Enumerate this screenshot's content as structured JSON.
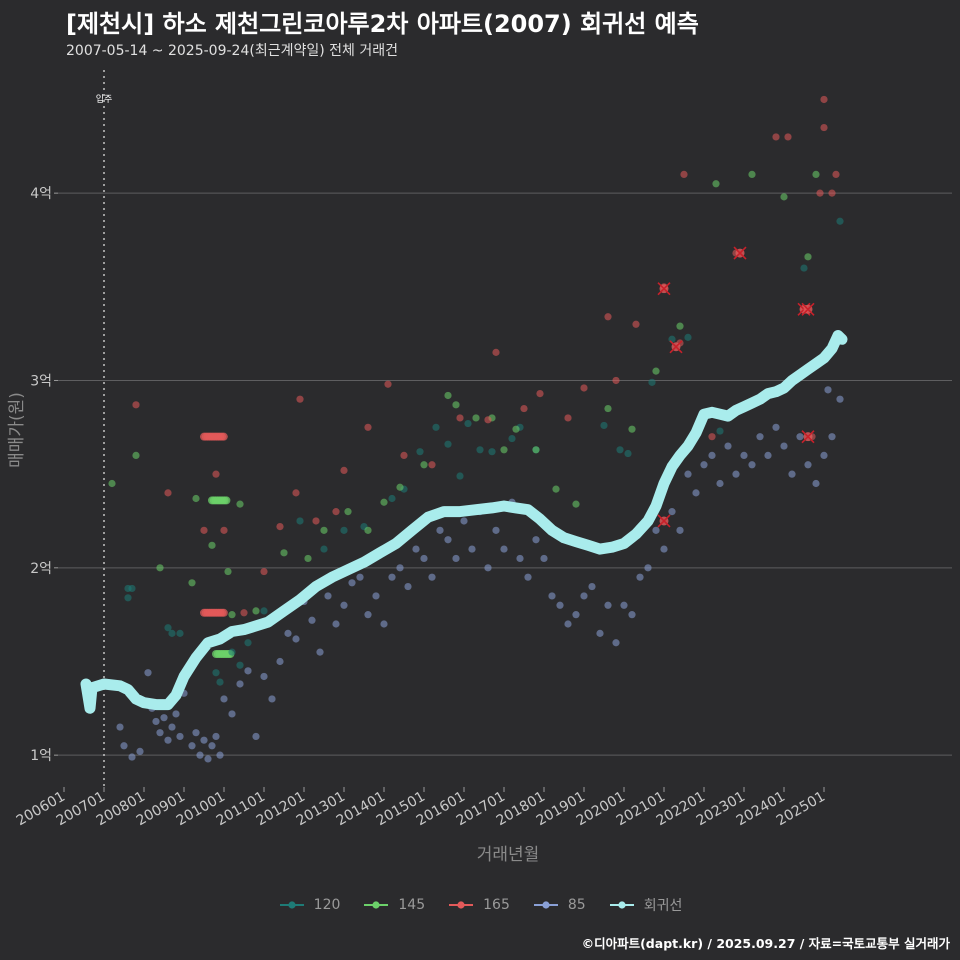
{
  "title": "[제천시] 하소 제천그린코아루2차 아파트(2007) 회귀선 예측",
  "subtitle": "2007-05-14 ~ 2025-09-24(최근계약일) 전체 거래건",
  "source": "©디아파트(dapt.kr) / 2025.09.27 / 자료=국토교통부 실거래가",
  "colors": {
    "background": "#2b2b2d",
    "grid": "#5e5e60",
    "s120": "#1e7b76",
    "s145": "#6cd16a",
    "s165": "#e35a5a",
    "s85": "#8aa0d6",
    "regression": "#a9ecec",
    "cancel": "#c8202a"
  },
  "chart_data": {
    "type": "scatter",
    "title": "[제천시] 하소 제천그린코아루2차 아파트(2007) 회귀선 예측",
    "xlabel": "거래년월",
    "ylabel": "매매가(원)",
    "xlim": [
      2005.85,
      2028.2
    ],
    "ylim": [
      0.83,
      4.7
    ],
    "yunit": "억",
    "y_ticks": [
      {
        "value": 1,
        "label": "1억"
      },
      {
        "value": 2,
        "label": "2억"
      },
      {
        "value": 3,
        "label": "3억"
      },
      {
        "value": 4,
        "label": "4억"
      }
    ],
    "x_ticks": [
      {
        "value": 2006.0,
        "label": "200601"
      },
      {
        "value": 2007.0,
        "label": "200701"
      },
      {
        "value": 2008.0,
        "label": "200801"
      },
      {
        "value": 2009.0,
        "label": "200901"
      },
      {
        "value": 2010.0,
        "label": "201001"
      },
      {
        "value": 2011.0,
        "label": "201101"
      },
      {
        "value": 2012.0,
        "label": "201201"
      },
      {
        "value": 2013.0,
        "label": "201301"
      },
      {
        "value": 2014.0,
        "label": "201401"
      },
      {
        "value": 2015.0,
        "label": "201501"
      },
      {
        "value": 2016.0,
        "label": "201601"
      },
      {
        "value": 2017.0,
        "label": "201701"
      },
      {
        "value": 2018.0,
        "label": "201801"
      },
      {
        "value": 2019.0,
        "label": "201901"
      },
      {
        "value": 2020.0,
        "label": "202001"
      },
      {
        "value": 2021.0,
        "label": "202101"
      },
      {
        "value": 2022.0,
        "label": "202201"
      },
      {
        "value": 2023.0,
        "label": "202301"
      },
      {
        "value": 2024.0,
        "label": "202401"
      },
      {
        "value": 2025.0,
        "label": "202501"
      }
    ],
    "annotation": {
      "x": 2007.0,
      "label": "입주"
    },
    "legend": [
      "120",
      "145",
      "165",
      "85",
      "회귀선"
    ],
    "series": [
      {
        "name": "120",
        "color": "#1e7b76",
        "points": [
          [
            2007.6,
            1.89
          ],
          [
            2007.7,
            1.89
          ],
          [
            2007.6,
            1.84
          ],
          [
            2008.6,
            1.68
          ],
          [
            2008.7,
            1.65
          ],
          [
            2008.9,
            1.65
          ],
          [
            2009.8,
            1.44
          ],
          [
            2009.9,
            1.39
          ],
          [
            2010.2,
            1.55
          ],
          [
            2010.4,
            1.48
          ],
          [
            2010.6,
            1.6
          ],
          [
            2011.0,
            1.77
          ],
          [
            2011.9,
            2.25
          ],
          [
            2012.5,
            2.1
          ],
          [
            2013.0,
            2.2
          ],
          [
            2013.5,
            2.22
          ],
          [
            2014.2,
            2.37
          ],
          [
            2014.5,
            2.42
          ],
          [
            2014.9,
            2.62
          ],
          [
            2015.3,
            2.75
          ],
          [
            2015.6,
            2.66
          ],
          [
            2015.9,
            2.49
          ],
          [
            2016.1,
            2.77
          ],
          [
            2016.4,
            2.63
          ],
          [
            2016.7,
            2.62
          ],
          [
            2017.2,
            2.69
          ],
          [
            2017.4,
            2.75
          ],
          [
            2017.8,
            2.63
          ],
          [
            2019.5,
            2.76
          ],
          [
            2019.9,
            2.63
          ],
          [
            2020.1,
            2.61
          ],
          [
            2020.7,
            2.99
          ],
          [
            2021.2,
            3.22
          ],
          [
            2021.6,
            3.23
          ],
          [
            2022.4,
            2.73
          ],
          [
            2024.5,
            3.6
          ],
          [
            2024.9,
            3.1
          ],
          [
            2025.4,
            3.85
          ]
        ]
      },
      {
        "name": "145",
        "color": "#6cd16a",
        "points": [
          [
            2007.2,
            2.45
          ],
          [
            2007.8,
            2.6
          ],
          [
            2008.4,
            2.0
          ],
          [
            2009.2,
            1.92
          ],
          [
            2009.3,
            2.37
          ],
          [
            2009.7,
            2.12
          ],
          [
            2010.1,
            1.98
          ],
          [
            2010.2,
            1.75
          ],
          [
            2010.4,
            2.34
          ],
          [
            2010.8,
            1.77
          ],
          [
            2011.5,
            2.08
          ],
          [
            2012.1,
            2.05
          ],
          [
            2012.5,
            2.2
          ],
          [
            2013.1,
            2.3
          ],
          [
            2013.6,
            2.2
          ],
          [
            2014.0,
            2.35
          ],
          [
            2014.4,
            2.43
          ],
          [
            2015.0,
            2.55
          ],
          [
            2015.6,
            2.92
          ],
          [
            2015.8,
            2.87
          ],
          [
            2016.3,
            2.8
          ],
          [
            2016.7,
            2.8
          ],
          [
            2017.0,
            2.63
          ],
          [
            2017.3,
            2.74
          ],
          [
            2017.8,
            2.63
          ],
          [
            2018.3,
            2.42
          ],
          [
            2018.8,
            2.34
          ],
          [
            2019.6,
            2.85
          ],
          [
            2020.2,
            2.74
          ],
          [
            2020.8,
            3.05
          ],
          [
            2021.4,
            3.29
          ],
          [
            2022.3,
            4.05
          ],
          [
            2023.2,
            4.1
          ],
          [
            2024.0,
            3.98
          ],
          [
            2024.6,
            3.66
          ],
          [
            2024.8,
            4.1
          ]
        ]
      },
      {
        "name": "165",
        "color": "#e35a5a",
        "points": [
          [
            2007.8,
            2.87
          ],
          [
            2008.6,
            2.4
          ],
          [
            2009.5,
            2.2
          ],
          [
            2009.8,
            2.5
          ],
          [
            2010.0,
            2.2
          ],
          [
            2010.5,
            1.76
          ],
          [
            2011.0,
            1.98
          ],
          [
            2011.4,
            2.22
          ],
          [
            2011.8,
            2.4
          ],
          [
            2011.9,
            2.9
          ],
          [
            2012.3,
            2.25
          ],
          [
            2012.8,
            2.3
          ],
          [
            2013.0,
            2.52
          ],
          [
            2013.6,
            2.75
          ],
          [
            2014.1,
            2.98
          ],
          [
            2014.5,
            2.6
          ],
          [
            2015.2,
            2.55
          ],
          [
            2015.9,
            2.8
          ],
          [
            2016.6,
            2.79
          ],
          [
            2016.8,
            3.15
          ],
          [
            2017.5,
            2.85
          ],
          [
            2017.9,
            2.93
          ],
          [
            2018.6,
            2.8
          ],
          [
            2019.0,
            2.96
          ],
          [
            2019.6,
            3.34
          ],
          [
            2019.8,
            3.0
          ],
          [
            2020.3,
            3.3
          ],
          [
            2021.0,
            3.5
          ],
          [
            2021.4,
            3.2
          ],
          [
            2021.5,
            4.1
          ],
          [
            2022.2,
            2.7
          ],
          [
            2022.8,
            3.68
          ],
          [
            2023.8,
            4.3
          ],
          [
            2024.1,
            4.3
          ],
          [
            2024.5,
            3.38
          ],
          [
            2024.9,
            4.0
          ],
          [
            2025.0,
            4.35
          ],
          [
            2025.3,
            4.1
          ],
          [
            2025.2,
            4.0
          ],
          [
            2025.0,
            4.5
          ],
          [
            2024.7,
            2.7
          ]
        ]
      },
      {
        "name": "85",
        "color": "#8aa0d6",
        "points": [
          [
            2007.4,
            1.15
          ],
          [
            2007.5,
            1.05
          ],
          [
            2007.7,
            0.99
          ],
          [
            2007.9,
            1.02
          ],
          [
            2008.0,
            1.28
          ],
          [
            2008.1,
            1.44
          ],
          [
            2008.2,
            1.25
          ],
          [
            2008.3,
            1.18
          ],
          [
            2008.4,
            1.12
          ],
          [
            2008.5,
            1.2
          ],
          [
            2008.6,
            1.08
          ],
          [
            2008.7,
            1.15
          ],
          [
            2008.8,
            1.22
          ],
          [
            2008.9,
            1.1
          ],
          [
            2009.0,
            1.33
          ],
          [
            2009.2,
            1.05
          ],
          [
            2009.3,
            1.12
          ],
          [
            2009.4,
            1.0
          ],
          [
            2009.5,
            1.08
          ],
          [
            2009.6,
            0.98
          ],
          [
            2009.7,
            1.05
          ],
          [
            2009.8,
            1.1
          ],
          [
            2009.9,
            1.0
          ],
          [
            2010.0,
            1.3
          ],
          [
            2010.2,
            1.22
          ],
          [
            2010.4,
            1.38
          ],
          [
            2010.6,
            1.45
          ],
          [
            2010.8,
            1.1
          ],
          [
            2011.0,
            1.42
          ],
          [
            2011.2,
            1.3
          ],
          [
            2011.4,
            1.5
          ],
          [
            2011.6,
            1.65
          ],
          [
            2011.8,
            1.62
          ],
          [
            2012.0,
            1.82
          ],
          [
            2012.2,
            1.72
          ],
          [
            2012.4,
            1.55
          ],
          [
            2012.6,
            1.85
          ],
          [
            2012.8,
            1.7
          ],
          [
            2013.0,
            1.8
          ],
          [
            2013.2,
            1.92
          ],
          [
            2013.4,
            1.95
          ],
          [
            2013.6,
            1.75
          ],
          [
            2013.8,
            1.85
          ],
          [
            2014.0,
            1.7
          ],
          [
            2014.2,
            1.95
          ],
          [
            2014.4,
            2.0
          ],
          [
            2014.6,
            1.9
          ],
          [
            2014.8,
            2.1
          ],
          [
            2015.0,
            2.05
          ],
          [
            2015.2,
            1.95
          ],
          [
            2015.4,
            2.2
          ],
          [
            2015.6,
            2.15
          ],
          [
            2015.8,
            2.05
          ],
          [
            2016.0,
            2.25
          ],
          [
            2016.2,
            2.1
          ],
          [
            2016.4,
            2.3
          ],
          [
            2016.6,
            2.0
          ],
          [
            2016.8,
            2.2
          ],
          [
            2017.0,
            2.1
          ],
          [
            2017.2,
            2.35
          ],
          [
            2017.4,
            2.05
          ],
          [
            2017.6,
            1.95
          ],
          [
            2017.8,
            2.15
          ],
          [
            2018.0,
            2.05
          ],
          [
            2018.2,
            1.85
          ],
          [
            2018.4,
            1.8
          ],
          [
            2018.6,
            1.7
          ],
          [
            2018.8,
            1.75
          ],
          [
            2019.0,
            1.85
          ],
          [
            2019.2,
            1.9
          ],
          [
            2019.4,
            1.65
          ],
          [
            2019.6,
            1.8
          ],
          [
            2019.8,
            1.6
          ],
          [
            2020.0,
            1.8
          ],
          [
            2020.2,
            1.75
          ],
          [
            2020.4,
            1.95
          ],
          [
            2020.6,
            2.0
          ],
          [
            2020.8,
            2.2
          ],
          [
            2021.0,
            2.1
          ],
          [
            2021.2,
            2.3
          ],
          [
            2021.4,
            2.2
          ],
          [
            2021.6,
            2.5
          ],
          [
            2021.8,
            2.4
          ],
          [
            2022.0,
            2.55
          ],
          [
            2022.2,
            2.6
          ],
          [
            2022.4,
            2.45
          ],
          [
            2022.6,
            2.65
          ],
          [
            2022.8,
            2.5
          ],
          [
            2023.0,
            2.6
          ],
          [
            2023.2,
            2.55
          ],
          [
            2023.4,
            2.7
          ],
          [
            2023.6,
            2.6
          ],
          [
            2023.8,
            2.75
          ],
          [
            2024.0,
            2.65
          ],
          [
            2024.2,
            2.5
          ],
          [
            2024.4,
            2.7
          ],
          [
            2024.6,
            2.55
          ],
          [
            2024.8,
            2.45
          ],
          [
            2025.0,
            2.6
          ],
          [
            2025.2,
            2.7
          ],
          [
            2025.4,
            2.9
          ],
          [
            2025.1,
            2.95
          ]
        ]
      }
    ],
    "highlighted_points": [
      [
        2021.0,
        3.49
      ],
      [
        2021.3,
        3.18
      ],
      [
        2022.9,
        3.68
      ],
      [
        2024.5,
        3.38
      ],
      [
        2024.6,
        3.38
      ],
      [
        2021.0,
        2.25
      ],
      [
        2024.6,
        2.7
      ]
    ],
    "fixed_bands": [
      {
        "series": "165",
        "y": 2.7,
        "x_from": 2009.5,
        "x_to": 2010.0
      },
      {
        "series": "165",
        "y": 1.76,
        "x_from": 2009.5,
        "x_to": 2010.0
      },
      {
        "series": "145",
        "y": 2.36,
        "x_from": 2009.7,
        "x_to": 2010.1
      },
      {
        "series": "145",
        "y": 1.54,
        "x_from": 2009.8,
        "x_to": 2010.2
      }
    ],
    "regression": {
      "name": "회귀선",
      "x": [
        2006.55,
        2006.65,
        2006.7,
        2007.0,
        2007.4,
        2007.6,
        2007.8,
        2008.0,
        2008.3,
        2008.6,
        2008.8,
        2009.0,
        2009.3,
        2009.6,
        2009.9,
        2010.2,
        2010.5,
        2010.8,
        2011.1,
        2011.5,
        2011.9,
        2012.3,
        2012.7,
        2013.1,
        2013.5,
        2013.9,
        2014.3,
        2014.7,
        2015.1,
        2015.5,
        2015.9,
        2016.3,
        2016.7,
        2017.0,
        2017.3,
        2017.6,
        2017.9,
        2018.2,
        2018.5,
        2018.8,
        2019.1,
        2019.4,
        2019.7,
        2020.0,
        2020.3,
        2020.6,
        2020.8,
        2021.0,
        2021.2,
        2021.4,
        2021.6,
        2021.8,
        2022.0,
        2022.2,
        2022.4,
        2022.6,
        2022.8,
        2023.0,
        2023.2,
        2023.4,
        2023.6,
        2023.8,
        2024.0,
        2024.2,
        2024.4,
        2024.6,
        2024.8,
        2025.0,
        2025.2,
        2025.35,
        2025.45
      ],
      "y": [
        1.38,
        1.25,
        1.36,
        1.38,
        1.37,
        1.35,
        1.3,
        1.28,
        1.27,
        1.27,
        1.32,
        1.42,
        1.52,
        1.6,
        1.62,
        1.66,
        1.67,
        1.69,
        1.71,
        1.77,
        1.83,
        1.9,
        1.95,
        1.99,
        2.03,
        2.08,
        2.13,
        2.2,
        2.27,
        2.3,
        2.3,
        2.31,
        2.32,
        2.33,
        2.32,
        2.31,
        2.26,
        2.2,
        2.16,
        2.14,
        2.12,
        2.1,
        2.11,
        2.13,
        2.18,
        2.25,
        2.33,
        2.45,
        2.54,
        2.6,
        2.65,
        2.72,
        2.82,
        2.83,
        2.82,
        2.81,
        2.84,
        2.86,
        2.88,
        2.9,
        2.93,
        2.94,
        2.96,
        3.0,
        3.03,
        3.06,
        3.09,
        3.12,
        3.17,
        3.24,
        3.22
      ]
    }
  }
}
